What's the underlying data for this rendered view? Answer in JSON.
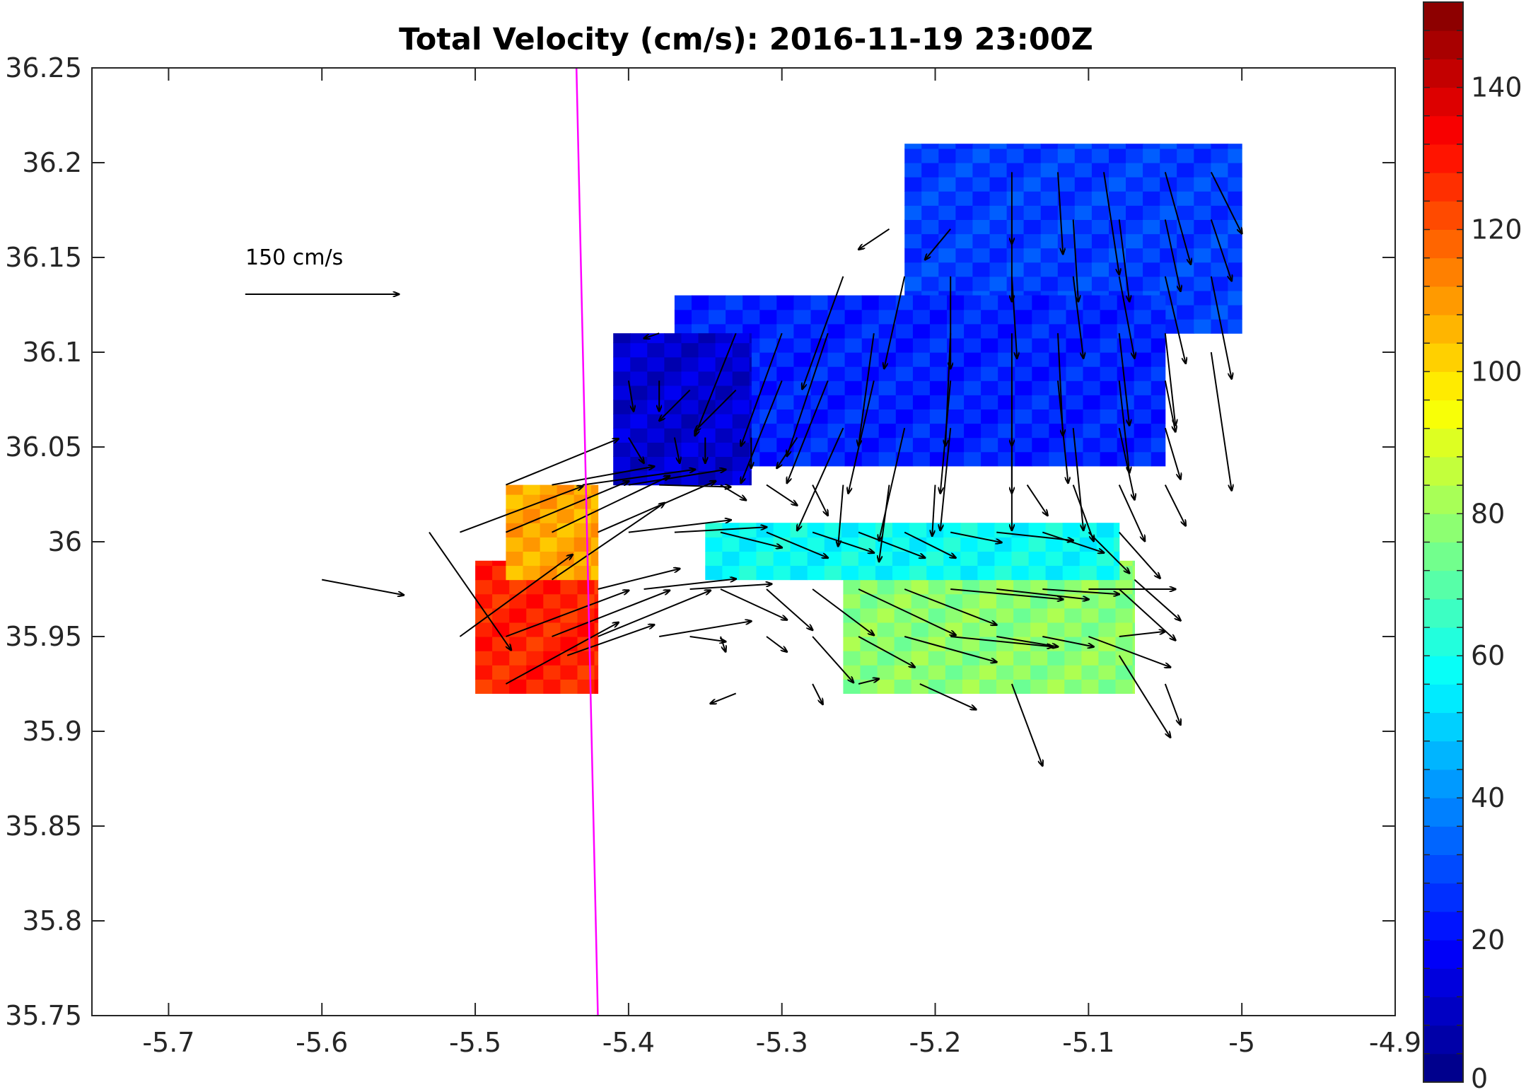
{
  "chart_data": {
    "type": "heatmap",
    "title": "Total Velocity (cm/s): 2016-11-19 23:00Z",
    "xlabel": "",
    "ylabel": "",
    "xlim": [
      -5.75,
      -4.9
    ],
    "ylim": [
      35.75,
      36.25
    ],
    "x_ticks": [
      -5.7,
      -5.6,
      -5.5,
      -5.4,
      -5.3,
      -5.2,
      -5.1,
      -5,
      -4.9
    ],
    "x_tick_labels": [
      "-5.7",
      "-5.6",
      "-5.5",
      "-5.4",
      "-5.3",
      "-5.2",
      "-5.1",
      "-5",
      "-4.9"
    ],
    "y_ticks": [
      35.75,
      35.8,
      35.85,
      35.9,
      35.95,
      36,
      36.05,
      36.1,
      36.15,
      36.2,
      36.25
    ],
    "y_tick_labels": [
      "35.75",
      "35.8",
      "35.85",
      "35.9",
      "35.95",
      "36",
      "36.05",
      "36.1",
      "36.15",
      "36.2",
      "36.25"
    ],
    "colorbar": {
      "range": [
        0,
        152
      ],
      "ticks": [
        0,
        20,
        40,
        60,
        80,
        100,
        120,
        140
      ],
      "tick_labels": [
        "0",
        "20",
        "40",
        "60",
        "80",
        "100",
        "120",
        "140"
      ],
      "colormap": "jet",
      "levels": 38
    },
    "reference_arrow": {
      "label": "150 cm/s",
      "speed": 150,
      "lon": -5.65,
      "lat": 36.13
    },
    "boundary_line": {
      "color": "#ff00ff",
      "points": [
        [
          -5.434,
          36.25
        ],
        [
          -5.42,
          35.75
        ]
      ]
    },
    "grid": false,
    "cell_size_deg": {
      "dlon": 0.0111,
      "dlat": 0.0075
    },
    "speed_field_regions": [
      {
        "name": "northern-lobe",
        "lon": [
          -5.22,
          -5.0
        ],
        "lat": [
          36.11,
          36.21
        ],
        "speed": 28
      },
      {
        "name": "central-north",
        "lon": [
          -5.37,
          -5.05
        ],
        "lat": [
          36.04,
          36.13
        ],
        "speed": 24
      },
      {
        "name": "slow-core",
        "lon": [
          -5.41,
          -5.32
        ],
        "lat": [
          36.03,
          36.11
        ],
        "speed": 12
      },
      {
        "name": "southeast-band",
        "lon": [
          -5.26,
          -5.07
        ],
        "lat": [
          35.92,
          35.99
        ],
        "speed": 78
      },
      {
        "name": "middle-band",
        "lon": [
          -5.35,
          -5.08
        ],
        "lat": [
          35.98,
          36.01
        ],
        "speed": 58
      },
      {
        "name": "western-jet",
        "lon": [
          -5.5,
          -5.42
        ],
        "lat": [
          35.92,
          35.99
        ],
        "speed": 128
      },
      {
        "name": "western-jet-north",
        "lon": [
          -5.48,
          -5.42
        ],
        "lat": [
          35.98,
          36.03
        ],
        "speed": 108
      }
    ],
    "vectors": [
      {
        "lon": -5.48,
        "lat": 36.03,
        "u": 110,
        "v": 45
      },
      {
        "lon": -5.45,
        "lat": 36.03,
        "u": 100,
        "v": 18
      },
      {
        "lon": -5.43,
        "lat": 36.03,
        "u": 110,
        "v": 15
      },
      {
        "lon": -5.4,
        "lat": 36.03,
        "u": 95,
        "v": 15
      },
      {
        "lon": -5.38,
        "lat": 36.03,
        "u": 70,
        "v": -2
      },
      {
        "lon": -5.51,
        "lat": 36.005,
        "u": 120,
        "v": 45
      },
      {
        "lon": -5.48,
        "lat": 36.005,
        "u": 120,
        "v": 50
      },
      {
        "lon": -5.45,
        "lat": 36.005,
        "u": 115,
        "v": 55
      },
      {
        "lon": -5.42,
        "lat": 36.005,
        "u": 115,
        "v": 50
      },
      {
        "lon": -5.4,
        "lat": 36.005,
        "u": 100,
        "v": 12
      },
      {
        "lon": -5.37,
        "lat": 36.005,
        "u": 90,
        "v": 5
      },
      {
        "lon": -5.34,
        "lat": 36.005,
        "u": 60,
        "v": -15
      },
      {
        "lon": -5.31,
        "lat": 36.005,
        "u": 60,
        "v": -25
      },
      {
        "lon": -5.28,
        "lat": 36.005,
        "u": 60,
        "v": -20
      },
      {
        "lon": -5.25,
        "lat": 36.005,
        "u": 65,
        "v": -25
      },
      {
        "lon": -5.22,
        "lat": 36.005,
        "u": 50,
        "v": -25
      },
      {
        "lon": -5.19,
        "lat": 36.005,
        "u": 50,
        "v": -10
      },
      {
        "lon": -5.16,
        "lat": 36.005,
        "u": 75,
        "v": -8
      },
      {
        "lon": -5.13,
        "lat": 36.005,
        "u": 60,
        "v": -20
      },
      {
        "lon": -5.1,
        "lat": 36.005,
        "u": 40,
        "v": -40
      },
      {
        "lon": -5.53,
        "lat": 36.005,
        "u": 80,
        "v": -115
      },
      {
        "lon": -5.6,
        "lat": 35.98,
        "u": 80,
        "v": -15
      },
      {
        "lon": -5.45,
        "lat": 35.98,
        "u": 110,
        "v": 75
      },
      {
        "lon": -5.42,
        "lat": 35.975,
        "u": 80,
        "v": 20
      },
      {
        "lon": -5.39,
        "lat": 35.975,
        "u": 90,
        "v": 10
      },
      {
        "lon": -5.36,
        "lat": 35.975,
        "u": 80,
        "v": 5
      },
      {
        "lon": -5.34,
        "lat": 35.975,
        "u": 65,
        "v": -30
      },
      {
        "lon": -5.31,
        "lat": 35.975,
        "u": 45,
        "v": -40
      },
      {
        "lon": -5.28,
        "lat": 35.975,
        "u": 60,
        "v": -45
      },
      {
        "lon": -5.25,
        "lat": 35.975,
        "u": 95,
        "v": -45
      },
      {
        "lon": -5.22,
        "lat": 35.975,
        "u": 90,
        "v": -35
      },
      {
        "lon": -5.19,
        "lat": 35.975,
        "u": 110,
        "v": -10
      },
      {
        "lon": -5.16,
        "lat": 35.975,
        "u": 90,
        "v": -10
      },
      {
        "lon": -5.13,
        "lat": 35.975,
        "u": 75,
        "v": -5
      },
      {
        "lon": -5.1,
        "lat": 35.975,
        "u": 85,
        "v": 0
      },
      {
        "lon": -5.08,
        "lat": 35.975,
        "u": 55,
        "v": -50
      },
      {
        "lon": -5.51,
        "lat": 35.95,
        "u": 110,
        "v": 80
      },
      {
        "lon": -5.48,
        "lat": 35.95,
        "u": 120,
        "v": 45
      },
      {
        "lon": -5.45,
        "lat": 35.95,
        "u": 115,
        "v": 45
      },
      {
        "lon": -5.42,
        "lat": 35.95,
        "u": 110,
        "v": 45
      },
      {
        "lon": -5.38,
        "lat": 35.95,
        "u": 90,
        "v": 15
      },
      {
        "lon": -5.36,
        "lat": 35.95,
        "u": 35,
        "v": -5
      },
      {
        "lon": -5.34,
        "lat": 35.95,
        "u": 5,
        "v": -15
      },
      {
        "lon": -5.31,
        "lat": 35.95,
        "u": 20,
        "v": -15
      },
      {
        "lon": -5.28,
        "lat": 35.95,
        "u": 40,
        "v": -45
      },
      {
        "lon": -5.25,
        "lat": 35.95,
        "u": 55,
        "v": -30
      },
      {
        "lon": -5.22,
        "lat": 35.95,
        "u": 90,
        "v": -25
      },
      {
        "lon": -5.19,
        "lat": 35.95,
        "u": 100,
        "v": -10
      },
      {
        "lon": -5.16,
        "lat": 35.95,
        "u": 60,
        "v": -10
      },
      {
        "lon": -5.13,
        "lat": 35.95,
        "u": 50,
        "v": -10
      },
      {
        "lon": -5.1,
        "lat": 35.95,
        "u": 80,
        "v": -30
      },
      {
        "lon": -5.08,
        "lat": 35.95,
        "u": 45,
        "v": 5
      },
      {
        "lon": -5.48,
        "lat": 35.925,
        "u": 110,
        "v": 60
      },
      {
        "lon": -5.44,
        "lat": 35.94,
        "u": 85,
        "v": 30
      },
      {
        "lon": -5.33,
        "lat": 35.92,
        "u": -25,
        "v": -10
      },
      {
        "lon": -5.28,
        "lat": 35.925,
        "u": 10,
        "v": -20
      },
      {
        "lon": -5.25,
        "lat": 35.925,
        "u": 20,
        "v": 5
      },
      {
        "lon": -5.21,
        "lat": 35.925,
        "u": 55,
        "v": -25
      },
      {
        "lon": -5.15,
        "lat": 35.925,
        "u": 30,
        "v": -80
      },
      {
        "lon": -5.08,
        "lat": 35.94,
        "u": 50,
        "v": -80
      },
      {
        "lon": -5.05,
        "lat": 35.925,
        "u": 15,
        "v": -40
      },
      {
        "lon": -5.07,
        "lat": 35.98,
        "u": 45,
        "v": -40
      },
      {
        "lon": -5.08,
        "lat": 36.005,
        "u": 40,
        "v": -45
      },
      {
        "lon": -5.05,
        "lat": 36.03,
        "u": 20,
        "v": -40
      },
      {
        "lon": -5.08,
        "lat": 36.03,
        "u": 25,
        "v": -55
      },
      {
        "lon": -5.11,
        "lat": 36.03,
        "u": 20,
        "v": -55
      },
      {
        "lon": -5.14,
        "lat": 36.03,
        "u": 20,
        "v": -30
      },
      {
        "lon": -5.2,
        "lat": 36.03,
        "u": -3,
        "v": -50
      },
      {
        "lon": -5.23,
        "lat": 36.03,
        "u": -10,
        "v": -75
      },
      {
        "lon": -5.26,
        "lat": 36.03,
        "u": -5,
        "v": -60
      },
      {
        "lon": -5.28,
        "lat": 36.03,
        "u": 15,
        "v": -30
      },
      {
        "lon": -5.31,
        "lat": 36.03,
        "u": 30,
        "v": -20
      },
      {
        "lon": -5.34,
        "lat": 36.03,
        "u": 25,
        "v": -15
      },
      {
        "lon": -5.4,
        "lat": 36.055,
        "u": 15,
        "v": -25
      },
      {
        "lon": -5.37,
        "lat": 36.055,
        "u": 5,
        "v": -25
      },
      {
        "lon": -5.35,
        "lat": 36.055,
        "u": 0,
        "v": -25
      },
      {
        "lon": -5.32,
        "lat": 36.055,
        "u": 0,
        "v": -30
      },
      {
        "lon": -5.29,
        "lat": 36.055,
        "u": -20,
        "v": -30
      },
      {
        "lon": -5.26,
        "lat": 36.06,
        "u": -45,
        "v": -100
      },
      {
        "lon": -5.22,
        "lat": 36.06,
        "u": -25,
        "v": -110
      },
      {
        "lon": -5.19,
        "lat": 36.06,
        "u": -10,
        "v": -100
      },
      {
        "lon": -5.15,
        "lat": 36.06,
        "u": 0,
        "v": -100
      },
      {
        "lon": -5.11,
        "lat": 36.06,
        "u": 10,
        "v": -100
      },
      {
        "lon": -5.08,
        "lat": 36.06,
        "u": 15,
        "v": -70
      },
      {
        "lon": -5.05,
        "lat": 36.06,
        "u": 15,
        "v": -50
      },
      {
        "lon": -5.4,
        "lat": 36.085,
        "u": 5,
        "v": -30
      },
      {
        "lon": -5.38,
        "lat": 36.085,
        "u": 0,
        "v": -30
      },
      {
        "lon": -5.36,
        "lat": 36.08,
        "u": -30,
        "v": -30
      },
      {
        "lon": -5.33,
        "lat": 36.08,
        "u": -40,
        "v": -40
      },
      {
        "lon": -5.3,
        "lat": 36.085,
        "u": -40,
        "v": -100
      },
      {
        "lon": -5.27,
        "lat": 36.085,
        "u": -40,
        "v": -100
      },
      {
        "lon": -5.24,
        "lat": 36.085,
        "u": -25,
        "v": -110
      },
      {
        "lon": -5.19,
        "lat": 36.085,
        "u": -10,
        "v": -110
      },
      {
        "lon": -5.15,
        "lat": 36.085,
        "u": 0,
        "v": -110
      },
      {
        "lon": -5.12,
        "lat": 36.085,
        "u": 10,
        "v": -100
      },
      {
        "lon": -5.08,
        "lat": 36.085,
        "u": 10,
        "v": -90
      },
      {
        "lon": -5.05,
        "lat": 36.085,
        "u": 10,
        "v": -50
      },
      {
        "lon": -5.02,
        "lat": 36.1,
        "u": 20,
        "v": -135
      },
      {
        "lon": -5.33,
        "lat": 36.11,
        "u": -40,
        "v": -100
      },
      {
        "lon": -5.3,
        "lat": 36.11,
        "u": -40,
        "v": -110
      },
      {
        "lon": -5.27,
        "lat": 36.11,
        "u": -40,
        "v": -120
      },
      {
        "lon": -5.24,
        "lat": 36.11,
        "u": -15,
        "v": -110
      },
      {
        "lon": -5.19,
        "lat": 36.11,
        "u": -5,
        "v": -110
      },
      {
        "lon": -5.15,
        "lat": 36.11,
        "u": 0,
        "v": -110
      },
      {
        "lon": -5.12,
        "lat": 36.11,
        "u": 5,
        "v": -100
      },
      {
        "lon": -5.08,
        "lat": 36.11,
        "u": 10,
        "v": -90
      },
      {
        "lon": -5.05,
        "lat": 36.11,
        "u": 10,
        "v": -90
      },
      {
        "lon": -5.38,
        "lat": 36.11,
        "u": -15,
        "v": -5
      },
      {
        "lon": -5.26,
        "lat": 36.14,
        "u": -40,
        "v": -110
      },
      {
        "lon": -5.22,
        "lat": 36.14,
        "u": -20,
        "v": -90
      },
      {
        "lon": -5.19,
        "lat": 36.14,
        "u": 0,
        "v": -90
      },
      {
        "lon": -5.15,
        "lat": 36.14,
        "u": 5,
        "v": -80
      },
      {
        "lon": -5.11,
        "lat": 36.14,
        "u": 10,
        "v": -80
      },
      {
        "lon": -5.08,
        "lat": 36.14,
        "u": 15,
        "v": -80
      },
      {
        "lon": -5.05,
        "lat": 36.14,
        "u": 20,
        "v": -85
      },
      {
        "lon": -5.02,
        "lat": 36.14,
        "u": 20,
        "v": -100
      },
      {
        "lon": -5.23,
        "lat": 36.165,
        "u": -30,
        "v": -20
      },
      {
        "lon": -5.19,
        "lat": 36.165,
        "u": -25,
        "v": -30
      },
      {
        "lon": -5.15,
        "lat": 36.17,
        "u": 0,
        "v": -80
      },
      {
        "lon": -5.11,
        "lat": 36.17,
        "u": 5,
        "v": -80
      },
      {
        "lon": -5.08,
        "lat": 36.17,
        "u": 10,
        "v": -80
      },
      {
        "lon": -5.05,
        "lat": 36.17,
        "u": 15,
        "v": -70
      },
      {
        "lon": -5.02,
        "lat": 36.17,
        "u": 20,
        "v": -60
      },
      {
        "lon": -5.15,
        "lat": 36.195,
        "u": 0,
        "v": -70
      },
      {
        "lon": -5.12,
        "lat": 36.195,
        "u": 5,
        "v": -80
      },
      {
        "lon": -5.09,
        "lat": 36.195,
        "u": 15,
        "v": -100
      },
      {
        "lon": -5.05,
        "lat": 36.195,
        "u": 25,
        "v": -90
      },
      {
        "lon": -5.02,
        "lat": 36.195,
        "u": 30,
        "v": -60
      }
    ]
  }
}
